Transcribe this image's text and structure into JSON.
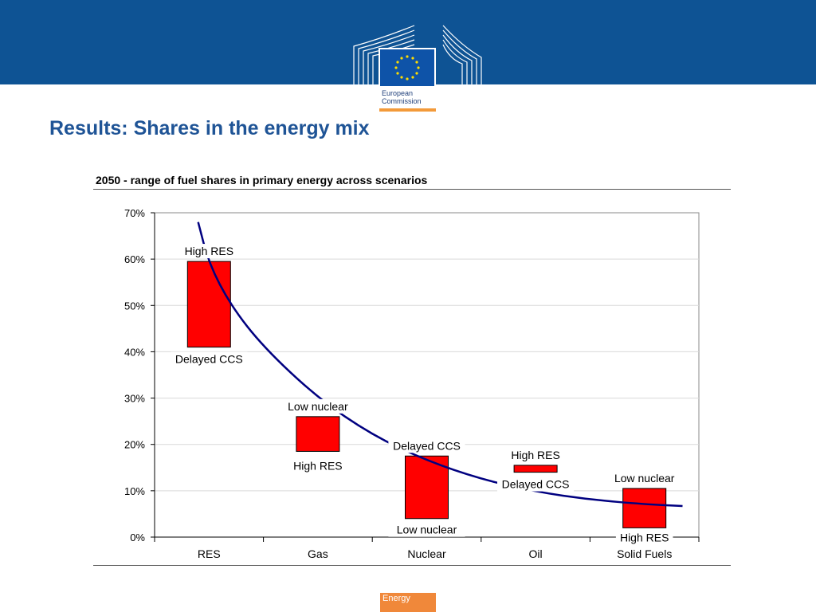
{
  "logo": {
    "line1": "European",
    "line2": "Commission"
  },
  "slide": {
    "title": "Results: Shares in the energy mix"
  },
  "footer": {
    "label": "Energy"
  },
  "colors": {
    "banner": "#0e5394",
    "title": "#1f5496",
    "bar": "#ff0000",
    "curve": "#000080",
    "footer": "#f0883a"
  },
  "chart_data": {
    "type": "bar",
    "subtype": "floating range bars with trend curve",
    "title": "2050 - range of fuel shares in primary energy across scenarios",
    "xlabel": "",
    "ylabel": "",
    "ylim": [
      0,
      70
    ],
    "yticks": [
      "0%",
      "10%",
      "20%",
      "30%",
      "40%",
      "50%",
      "60%",
      "70%"
    ],
    "grid": true,
    "legend": "none",
    "categories": [
      "RES",
      "Gas",
      "Nuclear",
      "Oil",
      "Solid Fuels"
    ],
    "ranges": [
      {
        "category": "RES",
        "low": 41,
        "high": 59.5,
        "label_high": "High RES",
        "label_low": "Delayed CCS"
      },
      {
        "category": "Gas",
        "low": 18.5,
        "high": 26,
        "label_high": "Low nuclear",
        "label_low": "High RES"
      },
      {
        "category": "Nuclear",
        "low": 4,
        "high": 17.5,
        "label_high": "Delayed CCS",
        "label_low": "Low nuclear"
      },
      {
        "category": "Oil",
        "low": 14,
        "high": 15.5,
        "label_high": "High RES",
        "label_low": "Delayed CCS"
      },
      {
        "category": "Solid Fuels",
        "low": 2,
        "high": 10.5,
        "label_high": "Low nuclear",
        "label_low": "High RES"
      }
    ],
    "trend_curve": {
      "x": [
        0.4,
        0.5,
        0.7,
        1.0,
        1.5,
        2.0,
        2.5,
        3.0,
        3.5,
        4.0,
        4.5,
        4.85
      ],
      "y": [
        68,
        59,
        50,
        41,
        30,
        22,
        16.5,
        12.5,
        9.8,
        8.1,
        7.1,
        6.7
      ]
    }
  }
}
